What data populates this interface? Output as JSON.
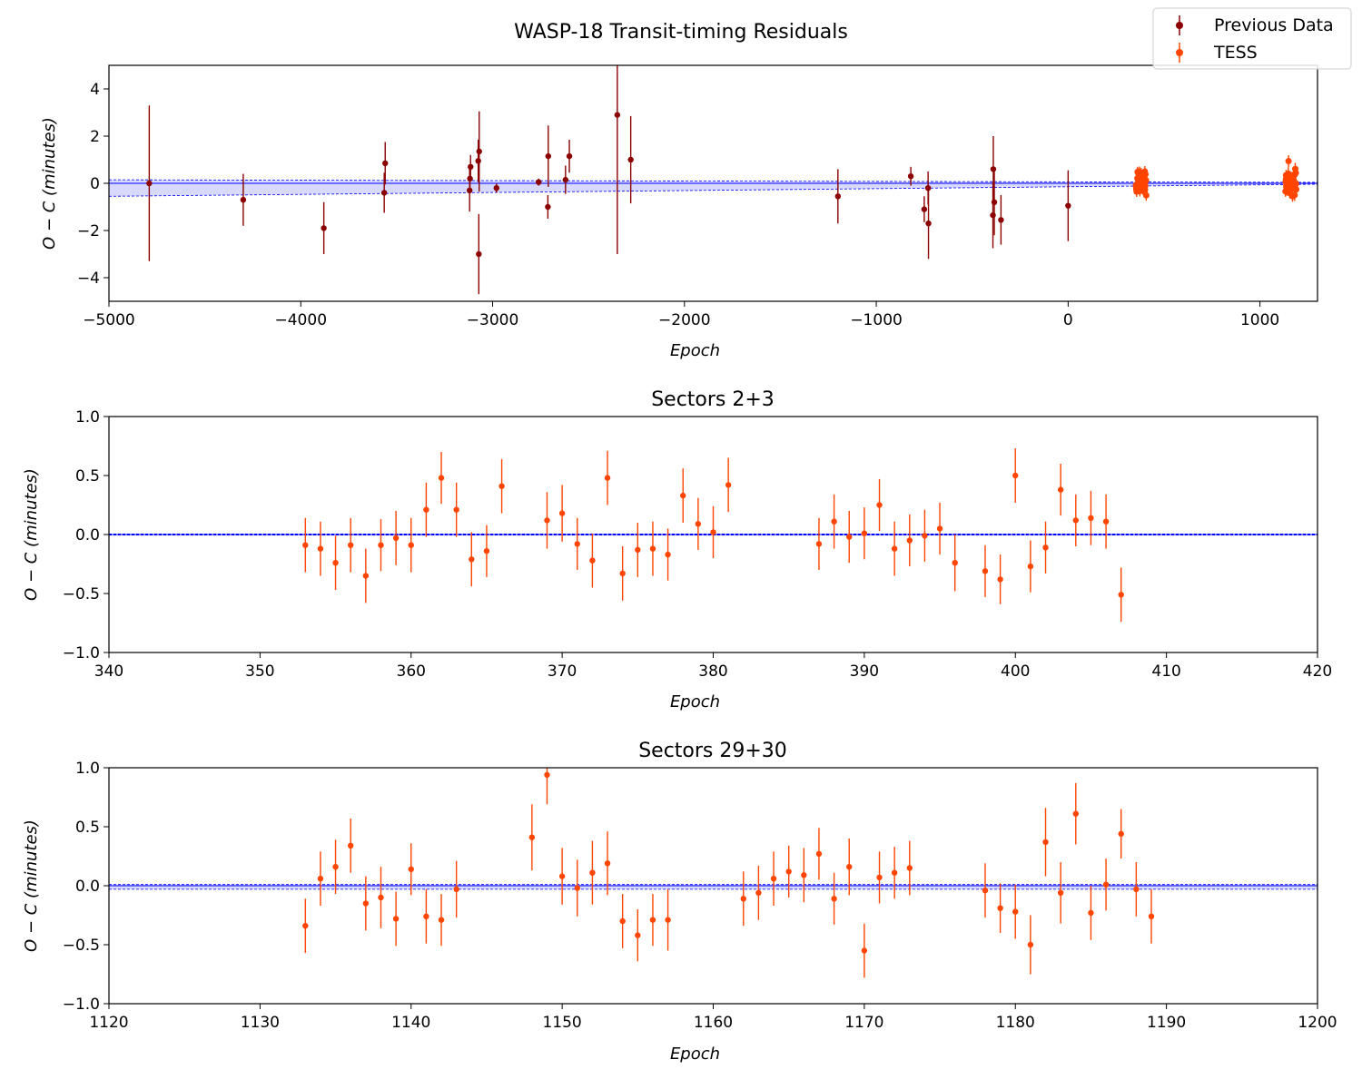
{
  "colors": {
    "previous": "#8b0000",
    "tess": "#ff4500",
    "model": "#0000ff",
    "band": "#b0b4ff"
  },
  "legend": {
    "location": "top-right",
    "entries": [
      {
        "label": "Previous Data",
        "color": "#8b0000"
      },
      {
        "label": "TESS",
        "color": "#ff4500"
      }
    ]
  },
  "chart_data": [
    {
      "type": "scatter",
      "title": "WASP-18 Transit-timing Residuals",
      "xlabel": "Epoch",
      "ylabel": "O − C (minutes)",
      "xlim": [
        -5000,
        1300
      ],
      "ylim": [
        -5,
        5
      ],
      "xticks": [
        -5000,
        -4000,
        -3000,
        -2000,
        -1000,
        0,
        1000
      ],
      "xtick_labels": [
        "−5000",
        "−4000",
        "−3000",
        "−2000",
        "−1000",
        "0",
        "1000"
      ],
      "yticks": [
        4,
        2,
        0,
        -2,
        -4
      ],
      "ytick_labels": [
        "4",
        "2",
        "0",
        "−2",
        "−4"
      ],
      "model_band": {
        "x": [
          -5000,
          1300
        ],
        "lower": [
          -0.55,
          -0.04
        ],
        "upper": [
          0.15,
          0.04
        ]
      },
      "series": [
        {
          "name": "Previous Data",
          "points": [
            {
              "x": -4790,
              "y": 0.0,
              "err": 3.3
            },
            {
              "x": -4300,
              "y": -0.7,
              "err": 1.1
            },
            {
              "x": -3880,
              "y": -1.9,
              "err": 1.1
            },
            {
              "x": -3560,
              "y": 0.85,
              "err": 0.9
            },
            {
              "x": -3565,
              "y": -0.4,
              "err": 0.85
            },
            {
              "x": -3115,
              "y": 0.7,
              "err": 0.5
            },
            {
              "x": -3118,
              "y": 0.2,
              "err": 0.6
            },
            {
              "x": -3120,
              "y": -0.3,
              "err": 0.9
            },
            {
              "x": -3070,
              "y": 1.35,
              "err": 1.7
            },
            {
              "x": -3075,
              "y": 0.95,
              "err": 0.9
            },
            {
              "x": -3072,
              "y": -3.0,
              "err": 1.7
            },
            {
              "x": -2980,
              "y": -0.2,
              "err": 0.2
            },
            {
              "x": -2760,
              "y": 0.05,
              "err": 0.15
            },
            {
              "x": -2710,
              "y": 1.15,
              "err": 1.3
            },
            {
              "x": -2712,
              "y": -1.0,
              "err": 0.5
            },
            {
              "x": -2620,
              "y": 0.15,
              "err": 0.6
            },
            {
              "x": -2600,
              "y": 1.15,
              "err": 0.7
            },
            {
              "x": -2350,
              "y": 2.9,
              "err": 5.9
            },
            {
              "x": -2280,
              "y": 1.0,
              "err": 1.85
            },
            {
              "x": -1200,
              "y": -0.55,
              "err": 1.15
            },
            {
              "x": -820,
              "y": 0.3,
              "err": 0.4
            },
            {
              "x": -750,
              "y": -1.1,
              "err": 0.55
            },
            {
              "x": -730,
              "y": -0.2,
              "err": 0.7
            },
            {
              "x": -728,
              "y": -1.7,
              "err": 1.5
            },
            {
              "x": -390,
              "y": 0.6,
              "err": 1.4
            },
            {
              "x": -385,
              "y": -0.8,
              "err": 1.4
            },
            {
              "x": -392,
              "y": -1.35,
              "err": 1.4
            },
            {
              "x": -350,
              "y": -1.55,
              "err": 1.05
            },
            {
              "x": 0,
              "y": -0.95,
              "err": 1.5
            }
          ]
        },
        {
          "name": "TESS",
          "cluster_ranges": [
            [
              353,
              407
            ],
            [
              1133,
              1189
            ]
          ],
          "points": []
        }
      ]
    },
    {
      "type": "scatter",
      "title": "Sectors 2+3",
      "xlabel": "Epoch",
      "ylabel": "O − C (minutes)",
      "xlim": [
        340,
        420
      ],
      "ylim": [
        -1.0,
        1.0
      ],
      "xticks": [
        340,
        350,
        360,
        370,
        380,
        390,
        400,
        410,
        420
      ],
      "xtick_labels": [
        "340",
        "350",
        "360",
        "370",
        "380",
        "390",
        "400",
        "410",
        "420"
      ],
      "yticks": [
        1.0,
        0.5,
        0.0,
        -0.5,
        -1.0
      ],
      "ytick_labels": [
        "1.0",
        "0.5",
        "0.0",
        "−0.5",
        "−1.0"
      ],
      "model_band": {
        "x": [
          340,
          420
        ],
        "lower": [
          -0.005,
          -0.005
        ],
        "upper": [
          0.005,
          0.005
        ]
      },
      "series": [
        {
          "name": "TESS",
          "points": [
            {
              "x": 353,
              "y": -0.09,
              "err": 0.23
            },
            {
              "x": 354,
              "y": -0.12,
              "err": 0.23
            },
            {
              "x": 355,
              "y": -0.24,
              "err": 0.23
            },
            {
              "x": 356,
              "y": -0.09,
              "err": 0.23
            },
            {
              "x": 357,
              "y": -0.35,
              "err": 0.23
            },
            {
              "x": 358,
              "y": -0.09,
              "err": 0.22
            },
            {
              "x": 359,
              "y": -0.03,
              "err": 0.23
            },
            {
              "x": 360,
              "y": -0.09,
              "err": 0.23
            },
            {
              "x": 361,
              "y": 0.21,
              "err": 0.23
            },
            {
              "x": 362,
              "y": 0.48,
              "err": 0.22
            },
            {
              "x": 363,
              "y": 0.21,
              "err": 0.23
            },
            {
              "x": 364,
              "y": -0.21,
              "err": 0.23
            },
            {
              "x": 365,
              "y": -0.14,
              "err": 0.22
            },
            {
              "x": 366,
              "y": 0.41,
              "err": 0.23
            },
            {
              "x": 369,
              "y": 0.12,
              "err": 0.24
            },
            {
              "x": 370,
              "y": 0.18,
              "err": 0.24
            },
            {
              "x": 371,
              "y": -0.08,
              "err": 0.22
            },
            {
              "x": 372,
              "y": -0.22,
              "err": 0.23
            },
            {
              "x": 373,
              "y": 0.48,
              "err": 0.23
            },
            {
              "x": 374,
              "y": -0.33,
              "err": 0.23
            },
            {
              "x": 375,
              "y": -0.13,
              "err": 0.23
            },
            {
              "x": 376,
              "y": -0.12,
              "err": 0.23
            },
            {
              "x": 377,
              "y": -0.17,
              "err": 0.22
            },
            {
              "x": 378,
              "y": 0.33,
              "err": 0.23
            },
            {
              "x": 379,
              "y": 0.09,
              "err": 0.22
            },
            {
              "x": 380,
              "y": 0.02,
              "err": 0.22
            },
            {
              "x": 381,
              "y": 0.42,
              "err": 0.23
            },
            {
              "x": 387,
              "y": -0.08,
              "err": 0.22
            },
            {
              "x": 388,
              "y": 0.11,
              "err": 0.23
            },
            {
              "x": 389,
              "y": -0.02,
              "err": 0.22
            },
            {
              "x": 390,
              "y": 0.01,
              "err": 0.22
            },
            {
              "x": 391,
              "y": 0.25,
              "err": 0.22
            },
            {
              "x": 392,
              "y": -0.12,
              "err": 0.23
            },
            {
              "x": 393,
              "y": -0.05,
              "err": 0.22
            },
            {
              "x": 394,
              "y": -0.01,
              "err": 0.22
            },
            {
              "x": 395,
              "y": 0.05,
              "err": 0.22
            },
            {
              "x": 396,
              "y": -0.24,
              "err": 0.24
            },
            {
              "x": 398,
              "y": -0.31,
              "err": 0.22
            },
            {
              "x": 399,
              "y": -0.38,
              "err": 0.21
            },
            {
              "x": 400,
              "y": 0.5,
              "err": 0.23
            },
            {
              "x": 401,
              "y": -0.27,
              "err": 0.22
            },
            {
              "x": 402,
              "y": -0.11,
              "err": 0.22
            },
            {
              "x": 403,
              "y": 0.38,
              "err": 0.22
            },
            {
              "x": 404,
              "y": 0.12,
              "err": 0.22
            },
            {
              "x": 405,
              "y": 0.14,
              "err": 0.23
            },
            {
              "x": 406,
              "y": 0.11,
              "err": 0.23
            },
            {
              "x": 407,
              "y": -0.51,
              "err": 0.23
            }
          ]
        }
      ]
    },
    {
      "type": "scatter",
      "title": "Sectors 29+30",
      "xlabel": "Epoch",
      "ylabel": "O − C (minutes)",
      "xlim": [
        1120,
        1200
      ],
      "ylim": [
        -1.0,
        1.0
      ],
      "xticks": [
        1120,
        1130,
        1140,
        1150,
        1160,
        1170,
        1180,
        1190,
        1200
      ],
      "xtick_labels": [
        "1120",
        "1130",
        "1140",
        "1150",
        "1160",
        "1170",
        "1180",
        "1190",
        "1200"
      ],
      "yticks": [
        1.0,
        0.5,
        0.0,
        -0.5,
        -1.0
      ],
      "ytick_labels": [
        "1.0",
        "0.5",
        "0.0",
        "−0.5",
        "−1.0"
      ],
      "model_band": {
        "x": [
          1120,
          1200
        ],
        "lower": [
          -0.03,
          -0.03
        ],
        "upper": [
          0.01,
          0.01
        ]
      },
      "series": [
        {
          "name": "TESS",
          "points": [
            {
              "x": 1133,
              "y": -0.34,
              "err": 0.23
            },
            {
              "x": 1134,
              "y": 0.06,
              "err": 0.23
            },
            {
              "x": 1135,
              "y": 0.16,
              "err": 0.23
            },
            {
              "x": 1136,
              "y": 0.34,
              "err": 0.23
            },
            {
              "x": 1137,
              "y": -0.15,
              "err": 0.23
            },
            {
              "x": 1138,
              "y": -0.1,
              "err": 0.26
            },
            {
              "x": 1139,
              "y": -0.28,
              "err": 0.23
            },
            {
              "x": 1140,
              "y": 0.14,
              "err": 0.22
            },
            {
              "x": 1141,
              "y": -0.26,
              "err": 0.23
            },
            {
              "x": 1142,
              "y": -0.29,
              "err": 0.22
            },
            {
              "x": 1143,
              "y": -0.03,
              "err": 0.24
            },
            {
              "x": 1148,
              "y": 0.41,
              "err": 0.28
            },
            {
              "x": 1149,
              "y": 0.94,
              "err": 0.25
            },
            {
              "x": 1150,
              "y": 0.08,
              "err": 0.24
            },
            {
              "x": 1151,
              "y": -0.02,
              "err": 0.24
            },
            {
              "x": 1152,
              "y": 0.11,
              "err": 0.27
            },
            {
              "x": 1153,
              "y": 0.19,
              "err": 0.27
            },
            {
              "x": 1154,
              "y": -0.3,
              "err": 0.23
            },
            {
              "x": 1155,
              "y": -0.42,
              "err": 0.22
            },
            {
              "x": 1156,
              "y": -0.29,
              "err": 0.22
            },
            {
              "x": 1157,
              "y": -0.29,
              "err": 0.26
            },
            {
              "x": 1162,
              "y": -0.11,
              "err": 0.23
            },
            {
              "x": 1163,
              "y": -0.06,
              "err": 0.23
            },
            {
              "x": 1164,
              "y": 0.06,
              "err": 0.23
            },
            {
              "x": 1165,
              "y": 0.12,
              "err": 0.22
            },
            {
              "x": 1166,
              "y": 0.09,
              "err": 0.23
            },
            {
              "x": 1167,
              "y": 0.27,
              "err": 0.22
            },
            {
              "x": 1168,
              "y": -0.11,
              "err": 0.22
            },
            {
              "x": 1169,
              "y": 0.16,
              "err": 0.24
            },
            {
              "x": 1170,
              "y": -0.55,
              "err": 0.23
            },
            {
              "x": 1171,
              "y": 0.07,
              "err": 0.22
            },
            {
              "x": 1172,
              "y": 0.11,
              "err": 0.22
            },
            {
              "x": 1173,
              "y": 0.15,
              "err": 0.23
            },
            {
              "x": 1178,
              "y": -0.04,
              "err": 0.23
            },
            {
              "x": 1179,
              "y": -0.19,
              "err": 0.21
            },
            {
              "x": 1180,
              "y": -0.22,
              "err": 0.23
            },
            {
              "x": 1181,
              "y": -0.5,
              "err": 0.25
            },
            {
              "x": 1182,
              "y": 0.37,
              "err": 0.29
            },
            {
              "x": 1183,
              "y": -0.06,
              "err": 0.26
            },
            {
              "x": 1184,
              "y": 0.61,
              "err": 0.26
            },
            {
              "x": 1185,
              "y": -0.23,
              "err": 0.23
            },
            {
              "x": 1186,
              "y": 0.01,
              "err": 0.22
            },
            {
              "x": 1187,
              "y": 0.44,
              "err": 0.21
            },
            {
              "x": 1188,
              "y": -0.03,
              "err": 0.23
            },
            {
              "x": 1189,
              "y": -0.26,
              "err": 0.23
            }
          ]
        }
      ]
    }
  ]
}
